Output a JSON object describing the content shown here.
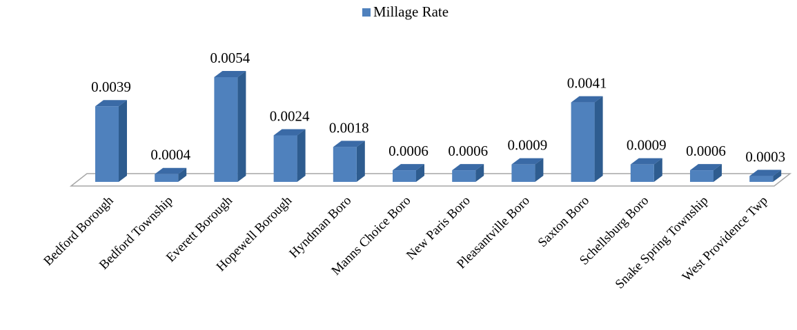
{
  "chart_data": {
    "type": "bar",
    "title": "",
    "xlabel": "",
    "ylabel": "",
    "categories": [
      "Bedford Borough",
      "Bedford Township",
      "Everett Borough",
      "Hopewell Borough",
      "Hyndman Boro",
      "Manns Choice Boro",
      "New Paris Boro",
      "Pleasantville Boro",
      "Saxton Boro",
      "Schellsburg Boro",
      "Snake Spring Township",
      "West Providence Twp"
    ],
    "series": [
      {
        "name": "Millage Rate",
        "values": [
          0.0039,
          0.0004,
          0.0054,
          0.0024,
          0.0018,
          0.0006,
          0.0006,
          0.0009,
          0.0041,
          0.0009,
          0.0006,
          0.0003
        ],
        "labels": [
          "0.0039",
          "0.0004",
          "0.0054",
          "0.0024",
          "0.0018",
          "0.0006",
          "0.0006",
          "0.0009",
          "0.0041",
          "0.0009",
          "0.0006",
          "0.0003"
        ]
      }
    ],
    "ylim": [
      0,
      0.0054
    ],
    "grid": false,
    "legend": "top-center",
    "style": "3d-column",
    "colors": {
      "front": "#4F81BD",
      "side": "#2E5C8F",
      "top": "#3A6AA6",
      "floor_stroke": "#A6A6A6"
    }
  }
}
